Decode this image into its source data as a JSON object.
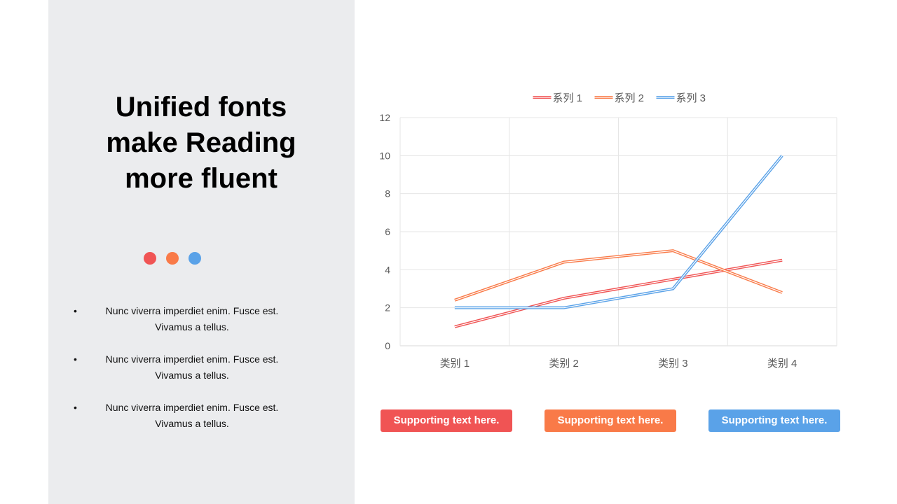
{
  "title": "Unified fonts make Reading more fluent",
  "bullets": [
    "Nunc viverra imperdiet enim. Fusce est. Vivamus a tellus.",
    "Nunc viverra imperdiet enim. Fusce est. Vivamus a tellus.",
    "Nunc viverra imperdiet enim. Fusce est. Vivamus a tellus."
  ],
  "colors": {
    "red": "#f05454",
    "orange": "#f97a48",
    "blue": "#5aa2e8",
    "panel": "#ebecee",
    "grid": "#e6e6e6",
    "axis_text": "#595959"
  },
  "chart_data": {
    "type": "line",
    "categories": [
      "类别 1",
      "类别 2",
      "类别 3",
      "类别 4"
    ],
    "series": [
      {
        "name": "系列 1",
        "values": [
          1.0,
          2.5,
          3.5,
          4.5
        ],
        "color": "#f05454"
      },
      {
        "name": "系列 2",
        "values": [
          2.4,
          4.4,
          5.0,
          2.8
        ],
        "color": "#f97a48"
      },
      {
        "name": "系列 3",
        "values": [
          2.0,
          2.0,
          3.0,
          10.0
        ],
        "color": "#5aa2e8"
      }
    ],
    "ylim": [
      0,
      12
    ],
    "yticks": [
      "0",
      "2",
      "4",
      "6",
      "8",
      "10",
      "12"
    ],
    "grid": true,
    "legend_position": "top"
  },
  "buttons": [
    {
      "label": "Supporting text here.",
      "color": "#f05454"
    },
    {
      "label": "Supporting text here.",
      "color": "#f97a48"
    },
    {
      "label": "Supporting text here.",
      "color": "#5aa2e8"
    }
  ]
}
